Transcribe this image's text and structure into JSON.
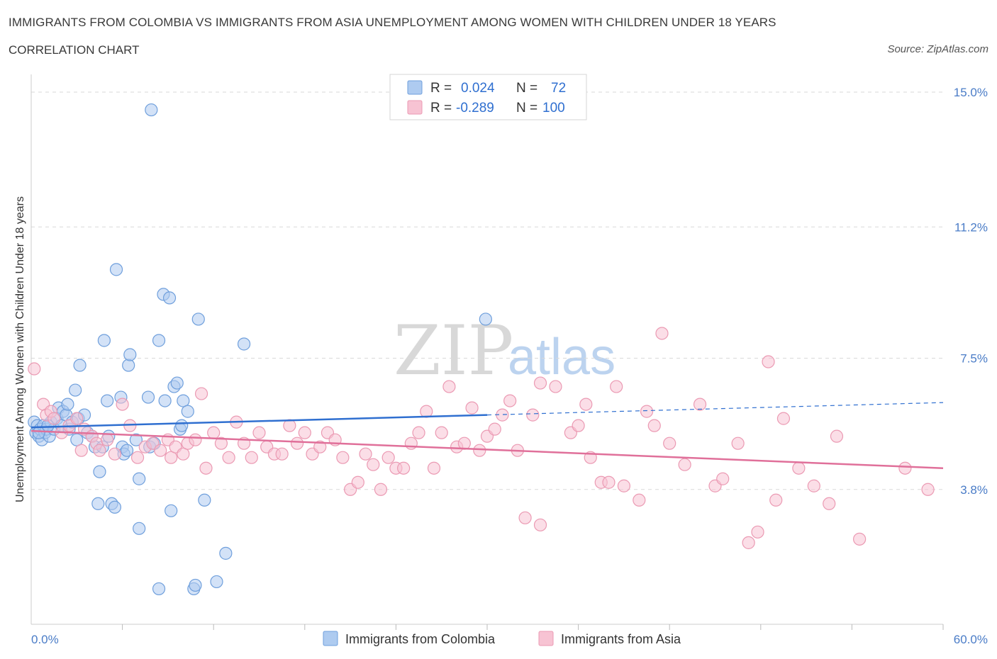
{
  "header": {
    "title": "IMMIGRANTS FROM COLOMBIA VS IMMIGRANTS FROM ASIA UNEMPLOYMENT AMONG WOMEN WITH CHILDREN UNDER 18 YEARS",
    "subtitle": "CORRELATION CHART",
    "source": "Source: ZipAtlas.com"
  },
  "watermark": {
    "zip": "ZIP",
    "atlas": "atlas"
  },
  "legend": {
    "rows": [
      {
        "r_label": "R =",
        "r_value": "0.024",
        "n_label": "N =",
        "n_value": "72"
      },
      {
        "r_label": "R =",
        "r_value": "-0.289",
        "n_label": "N =",
        "n_value": "100"
      }
    ]
  },
  "colors": {
    "colombia_fill": "#aecbf0",
    "colombia_stroke": "#6f9fdc",
    "colombia_line": "#2f6fd0",
    "asia_fill": "#f7c3d3",
    "asia_stroke": "#eb9ab3",
    "asia_line": "#e0709a",
    "axis_text": "#4a7cc7",
    "grid": "#d9d9d9"
  },
  "chart_data": {
    "type": "scatter",
    "title": "IMMIGRANTS FROM COLOMBIA VS IMMIGRANTS FROM ASIA UNEMPLOYMENT AMONG WOMEN WITH CHILDREN UNDER 18 YEARS",
    "subtitle": "CORRELATION CHART",
    "xlabel": "",
    "ylabel": "Unemployment Among Women with Children Under 18 years",
    "xlim": [
      0,
      60
    ],
    "ylim": [
      0,
      15.5
    ],
    "x_tick_labels": [
      "0.0%",
      "60.0%"
    ],
    "y_ticks": [
      3.8,
      7.5,
      11.2,
      15.0
    ],
    "y_tick_labels": [
      "3.8%",
      "7.5%",
      "11.2%",
      "15.0%"
    ],
    "grid": true,
    "legend_placement": "top-center",
    "series": [
      {
        "name": "Immigrants from Colombia",
        "r": 0.024,
        "n": 72,
        "trend": {
          "solid": [
            [
              0,
              5.55
            ],
            [
              30,
              5.9
            ]
          ],
          "dashed": [
            [
              30,
              5.9
            ],
            [
              60,
              6.25
            ]
          ]
        },
        "points": [
          [
            0.2,
            5.7
          ],
          [
            0.3,
            5.4
          ],
          [
            0.4,
            5.6
          ],
          [
            0.5,
            5.3
          ],
          [
            0.6,
            5.5
          ],
          [
            0.7,
            5.2
          ],
          [
            0.8,
            5.6
          ],
          [
            0.9,
            5.4
          ],
          [
            1.0,
            5.5
          ],
          [
            1.2,
            5.3
          ],
          [
            1.3,
            5.7
          ],
          [
            1.5,
            5.5
          ],
          [
            1.7,
            5.8
          ],
          [
            1.8,
            6.1
          ],
          [
            2.0,
            5.6
          ],
          [
            2.1,
            6.0
          ],
          [
            2.3,
            5.9
          ],
          [
            2.4,
            6.2
          ],
          [
            2.5,
            5.5
          ],
          [
            2.7,
            5.7
          ],
          [
            2.9,
            6.6
          ],
          [
            3.0,
            5.2
          ],
          [
            3.1,
            5.8
          ],
          [
            3.2,
            7.3
          ],
          [
            3.5,
            5.9
          ],
          [
            3.7,
            5.4
          ],
          [
            4.0,
            5.3
          ],
          [
            4.2,
            5.0
          ],
          [
            4.4,
            3.4
          ],
          [
            4.5,
            4.3
          ],
          [
            4.7,
            5.0
          ],
          [
            4.8,
            8.0
          ],
          [
            5.0,
            6.3
          ],
          [
            5.1,
            5.3
          ],
          [
            5.3,
            3.4
          ],
          [
            5.5,
            3.3
          ],
          [
            5.6,
            10.0
          ],
          [
            5.9,
            6.4
          ],
          [
            6.0,
            5.0
          ],
          [
            6.1,
            4.8
          ],
          [
            6.3,
            4.9
          ],
          [
            6.4,
            7.3
          ],
          [
            6.5,
            7.6
          ],
          [
            6.9,
            5.2
          ],
          [
            7.1,
            2.7
          ],
          [
            7.1,
            4.1
          ],
          [
            7.7,
            6.4
          ],
          [
            7.8,
            5.0
          ],
          [
            7.9,
            14.5
          ],
          [
            8.1,
            5.1
          ],
          [
            8.4,
            1.0
          ],
          [
            8.4,
            8.0
          ],
          [
            8.7,
            9.3
          ],
          [
            8.8,
            6.3
          ],
          [
            9.1,
            9.2
          ],
          [
            9.2,
            3.2
          ],
          [
            9.4,
            6.7
          ],
          [
            9.6,
            6.8
          ],
          [
            9.8,
            5.5
          ],
          [
            9.9,
            5.6
          ],
          [
            10.0,
            6.3
          ],
          [
            10.3,
            6.0
          ],
          [
            10.7,
            1.0
          ],
          [
            10.8,
            1.1
          ],
          [
            11.0,
            8.6
          ],
          [
            11.4,
            3.5
          ],
          [
            12.2,
            1.2
          ],
          [
            12.8,
            2.0
          ],
          [
            14.0,
            7.9
          ],
          [
            29.9,
            8.6
          ],
          [
            0.5,
            5.4
          ],
          [
            1.1,
            5.6
          ]
        ]
      },
      {
        "name": "Immigrants from Asia",
        "r": -0.289,
        "n": 100,
        "trend": {
          "solid": [
            [
              0,
              5.45
            ],
            [
              60,
              4.4
            ]
          ]
        },
        "points": [
          [
            0.2,
            7.2
          ],
          [
            0.8,
            6.2
          ],
          [
            1.0,
            5.9
          ],
          [
            1.3,
            6.0
          ],
          [
            1.5,
            5.8
          ],
          [
            2.0,
            5.4
          ],
          [
            2.5,
            5.6
          ],
          [
            3.0,
            5.8
          ],
          [
            3.3,
            4.9
          ],
          [
            3.5,
            5.5
          ],
          [
            4.0,
            5.3
          ],
          [
            4.3,
            5.1
          ],
          [
            4.5,
            4.9
          ],
          [
            5.0,
            5.2
          ],
          [
            5.5,
            4.8
          ],
          [
            6.0,
            6.2
          ],
          [
            6.5,
            5.6
          ],
          [
            7.0,
            4.7
          ],
          [
            7.5,
            5.0
          ],
          [
            8.0,
            5.1
          ],
          [
            8.5,
            4.9
          ],
          [
            9.0,
            5.2
          ],
          [
            9.2,
            4.7
          ],
          [
            9.5,
            5.0
          ],
          [
            10.0,
            4.8
          ],
          [
            10.3,
            5.1
          ],
          [
            10.8,
            5.2
          ],
          [
            11.2,
            6.5
          ],
          [
            11.5,
            4.4
          ],
          [
            12.0,
            5.4
          ],
          [
            12.5,
            5.1
          ],
          [
            13.0,
            4.7
          ],
          [
            13.5,
            5.7
          ],
          [
            14.0,
            5.1
          ],
          [
            14.5,
            4.7
          ],
          [
            15.0,
            5.4
          ],
          [
            15.5,
            5.0
          ],
          [
            16.0,
            4.8
          ],
          [
            16.5,
            4.8
          ],
          [
            17.0,
            5.6
          ],
          [
            17.5,
            5.1
          ],
          [
            18.0,
            5.4
          ],
          [
            18.5,
            4.8
          ],
          [
            19.0,
            5.0
          ],
          [
            19.5,
            5.4
          ],
          [
            20.0,
            5.2
          ],
          [
            20.5,
            4.7
          ],
          [
            21.0,
            3.8
          ],
          [
            21.5,
            4.0
          ],
          [
            22.0,
            4.8
          ],
          [
            22.5,
            4.5
          ],
          [
            23.0,
            3.8
          ],
          [
            23.5,
            4.7
          ],
          [
            24.0,
            4.4
          ],
          [
            24.5,
            4.4
          ],
          [
            25.0,
            5.1
          ],
          [
            25.5,
            5.4
          ],
          [
            26.0,
            6.0
          ],
          [
            26.5,
            4.4
          ],
          [
            27.0,
            5.4
          ],
          [
            27.5,
            6.7
          ],
          [
            28.0,
            5.0
          ],
          [
            28.5,
            5.1
          ],
          [
            29.0,
            6.1
          ],
          [
            29.5,
            4.9
          ],
          [
            30.0,
            5.3
          ],
          [
            30.5,
            5.5
          ],
          [
            31.0,
            5.9
          ],
          [
            31.5,
            6.3
          ],
          [
            32.0,
            4.9
          ],
          [
            32.5,
            3.0
          ],
          [
            33.0,
            5.9
          ],
          [
            33.5,
            6.8
          ],
          [
            33.5,
            2.8
          ],
          [
            34.5,
            6.7
          ],
          [
            35.5,
            5.4
          ],
          [
            36.0,
            5.6
          ],
          [
            36.5,
            6.2
          ],
          [
            36.8,
            4.7
          ],
          [
            37.5,
            4.0
          ],
          [
            38.0,
            4.0
          ],
          [
            38.5,
            6.7
          ],
          [
            39.0,
            3.9
          ],
          [
            40.0,
            3.5
          ],
          [
            40.5,
            6.0
          ],
          [
            41.0,
            5.6
          ],
          [
            41.5,
            8.2
          ],
          [
            42.0,
            5.1
          ],
          [
            43.0,
            4.5
          ],
          [
            44.0,
            6.2
          ],
          [
            45.0,
            3.9
          ],
          [
            45.5,
            4.1
          ],
          [
            46.5,
            5.1
          ],
          [
            47.2,
            2.3
          ],
          [
            47.8,
            2.6
          ],
          [
            48.5,
            7.4
          ],
          [
            49.0,
            3.5
          ],
          [
            49.5,
            5.8
          ],
          [
            50.5,
            4.4
          ],
          [
            51.5,
            3.9
          ],
          [
            52.5,
            3.4
          ],
          [
            53.0,
            5.3
          ],
          [
            54.5,
            2.4
          ],
          [
            57.5,
            4.4
          ],
          [
            59.0,
            3.8
          ]
        ]
      }
    ]
  },
  "bottom_legend": {
    "items": [
      {
        "label": "Immigrants from Colombia"
      },
      {
        "label": "Immigrants from Asia"
      }
    ]
  }
}
